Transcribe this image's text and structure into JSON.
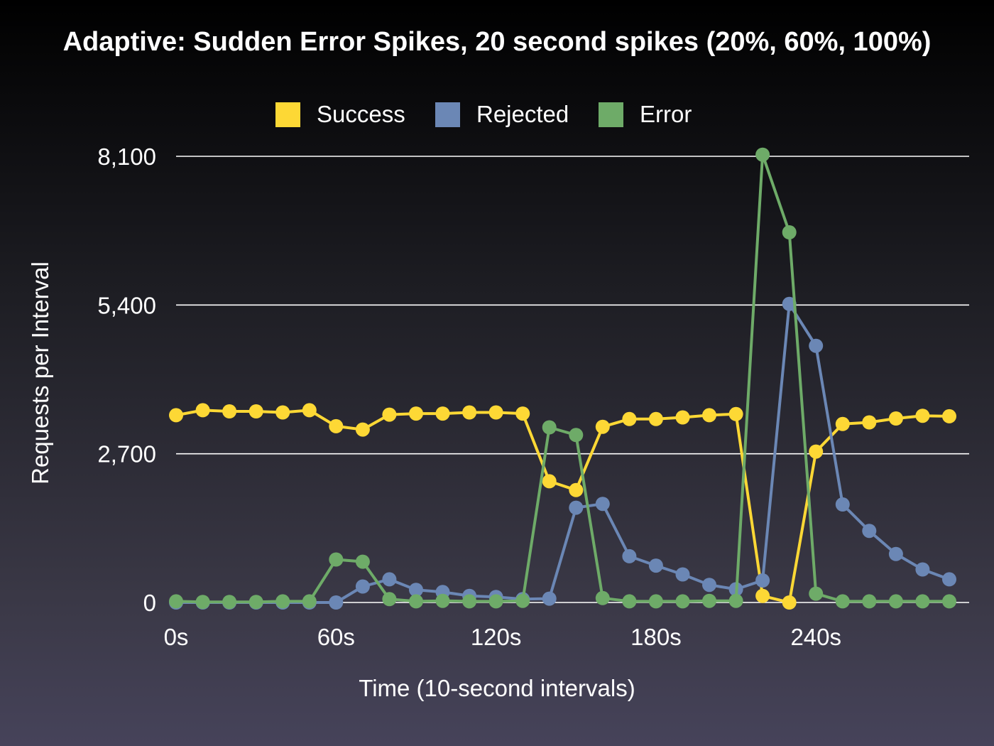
{
  "chart_data": {
    "type": "line",
    "title": "Adaptive: Sudden Error Spikes, 20 second spikes (20%, 60%, 100%)",
    "xlabel": "Time (10-second intervals)",
    "ylabel": "Requests per Interval",
    "x_ticks": [
      "0s",
      "60s",
      "120s",
      "180s",
      "240s"
    ],
    "x_tick_values": [
      0,
      60,
      120,
      180,
      240
    ],
    "x": [
      0,
      10,
      20,
      30,
      40,
      50,
      60,
      70,
      80,
      90,
      100,
      110,
      120,
      130,
      140,
      150,
      160,
      170,
      180,
      190,
      200,
      210,
      220,
      230,
      240,
      250,
      260,
      270,
      280,
      290
    ],
    "y_ticks": [
      "0",
      "2,700",
      "5,400",
      "8,100"
    ],
    "y_tick_values": [
      0,
      2700,
      5400,
      8100
    ],
    "xlim": [
      0,
      290
    ],
    "ylim": [
      0,
      8100
    ],
    "grid": true,
    "legend_position": "top",
    "series": [
      {
        "name": "Success",
        "color": "#fdd835",
        "values": [
          3400,
          3490,
          3470,
          3470,
          3450,
          3490,
          3200,
          3140,
          3410,
          3430,
          3430,
          3450,
          3450,
          3430,
          2200,
          2040,
          3190,
          3330,
          3330,
          3360,
          3400,
          3420,
          120,
          0,
          2740,
          3240,
          3270,
          3340,
          3390,
          3380
        ]
      },
      {
        "name": "Rejected",
        "color": "#6b87b5",
        "values": [
          0,
          0,
          0,
          0,
          0,
          0,
          0,
          290,
          420,
          230,
          190,
          120,
          100,
          60,
          70,
          1720,
          1790,
          840,
          670,
          510,
          320,
          240,
          400,
          5420,
          4660,
          1780,
          1300,
          880,
          600,
          420
        ]
      },
      {
        "name": "Error",
        "color": "#6eab68",
        "values": [
          20,
          10,
          10,
          10,
          20,
          20,
          780,
          740,
          60,
          20,
          30,
          20,
          20,
          30,
          3180,
          3040,
          80,
          20,
          20,
          20,
          30,
          30,
          8130,
          6720,
          160,
          20,
          20,
          20,
          20,
          20
        ]
      }
    ]
  }
}
